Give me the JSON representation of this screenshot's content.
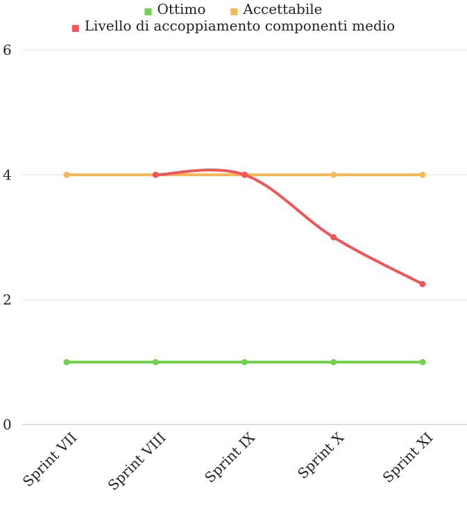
{
  "chart_data": {
    "type": "line",
    "categories": [
      "Sprint VII",
      "Sprint VIII",
      "Sprint IX",
      "Sprint X",
      "Sprint XI"
    ],
    "series": [
      {
        "name": "Ottimo",
        "color": "#6fd34a",
        "values": [
          1,
          1,
          1,
          1,
          1
        ]
      },
      {
        "name": "Accettabile",
        "color": "#f7b955",
        "values": [
          4,
          4,
          4,
          4,
          4
        ]
      },
      {
        "name": "Livello di accoppiamento componenti medio",
        "color": "#f25555",
        "values": [
          null,
          4,
          4,
          3,
          2.25
        ]
      }
    ],
    "y_ticks": [
      "0",
      "2",
      "4",
      "6"
    ],
    "ylim": [
      0,
      6
    ],
    "grid": true,
    "legend_position": "top-center"
  }
}
